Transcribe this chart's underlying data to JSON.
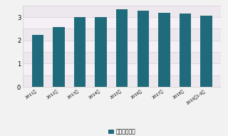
{
  "categories": [
    "2011年",
    "2012年",
    "2013年",
    "2014年",
    "2015年",
    "2016年",
    "2017年",
    "2018年",
    "2019年1-9月"
  ],
  "values": [
    2.25,
    2.58,
    3.0,
    3.0,
    3.35,
    3.28,
    3.18,
    3.15,
    3.07
  ],
  "bar_color": "#1f6b7c",
  "ylim": [
    0,
    3.5
  ],
  "yticks": [
    0,
    0.5,
    1.0,
    1.5,
    2.0,
    2.5,
    3.0,
    3.5
  ],
  "ytick_labels": [
    "0",
    "",
    "1",
    "",
    "2",
    "",
    "3",
    ""
  ],
  "legend_label": "产量（亿吨）",
  "background_color": "#f2f2f2",
  "plot_bg_color": "#f9f5f7",
  "grid_color": "#d8d0d8",
  "border_color": "#cccccc"
}
